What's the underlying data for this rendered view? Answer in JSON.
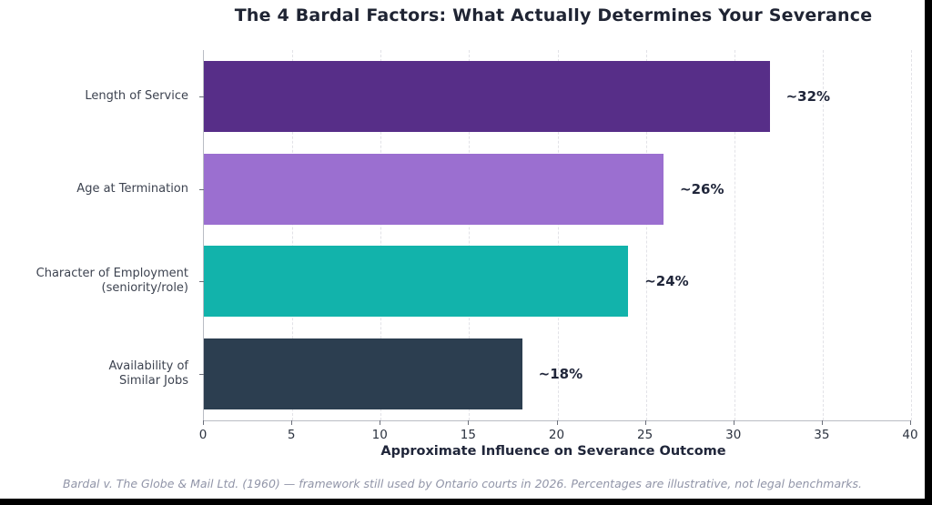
{
  "chart_data": {
    "type": "bar",
    "orientation": "horizontal",
    "title": "The 4 Bardal Factors: What Actually Determines Your Severance",
    "xlabel": "Approximate Influence on Severance Outcome",
    "footnote": "Bardal v. The Globe & Mail Ltd. (1960) — framework still used by Ontario courts in 2026. Percentages are illustrative, not legal benchmarks.",
    "categories": [
      "Length of Service",
      "Age at Termination",
      "Character of Employment\n(seniority/role)",
      "Availability of\nSimilar Jobs"
    ],
    "values": [
      32,
      26,
      24,
      18
    ],
    "value_labels": [
      "~32%",
      "~26%",
      "~24%",
      "~18%"
    ],
    "bar_colors": [
      "#572e88",
      "#9b6fd0",
      "#12b3ab",
      "#2c3e50"
    ],
    "xticks": [
      0,
      5,
      10,
      15,
      20,
      25,
      30,
      35,
      40
    ],
    "xlim": [
      0,
      40
    ],
    "grid": "vertical-dashed",
    "legend": "none"
  },
  "colors": {
    "title_text": "#1f2433",
    "axis_spine": "#b9bcc4",
    "gridline": "#e2e2e7",
    "footnote_text": "#9195a8",
    "background": "#ffffff"
  }
}
